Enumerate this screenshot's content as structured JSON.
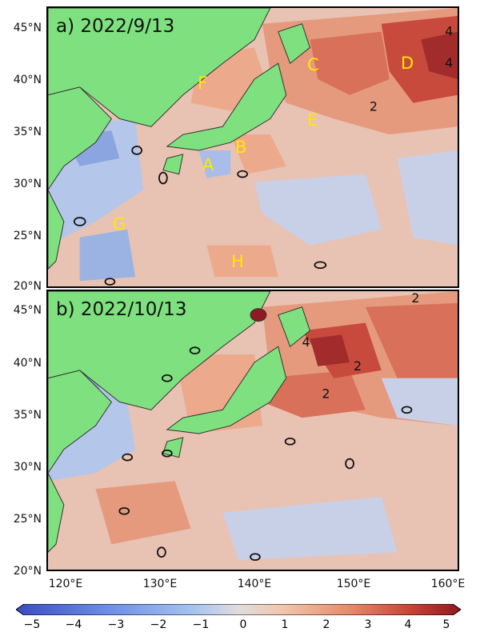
{
  "panels": [
    {
      "id": "a",
      "title": "a) 2022/9/13"
    },
    {
      "id": "b",
      "title": "b) 2022/10/13"
    }
  ],
  "region_labels": {
    "A": "A",
    "B": "B",
    "C": "C",
    "D": "D",
    "E": "E",
    "F": "F",
    "G": "G",
    "H": "H"
  },
  "axes": {
    "lat_ticks": [
      "45°N",
      "40°N",
      "35°N",
      "30°N",
      "25°N",
      "20°N"
    ],
    "lon_ticks": [
      "120°E",
      "130°E",
      "140°E",
      "150°E",
      "160°E"
    ],
    "lat_range": [
      20,
      47
    ],
    "lon_range": [
      120,
      160
    ]
  },
  "contour_labels": {
    "a_1": "4",
    "a_2": "4",
    "a_3": "2",
    "b_1": "2",
    "b_2": "4",
    "b_3": "2",
    "b_4": "2"
  },
  "colorbar": {
    "ticks": [
      "−5",
      "−4",
      "−3",
      "−2",
      "−1",
      "0",
      "1",
      "2",
      "3",
      "4",
      "5"
    ],
    "range": [
      -5,
      5
    ],
    "colors": [
      "#3b4cc0",
      "#6a8ce6",
      "#a8c3f0",
      "#d8dde6",
      "#f2c5ad",
      "#e58b6a",
      "#c33d32",
      "#8e1a22"
    ]
  }
}
